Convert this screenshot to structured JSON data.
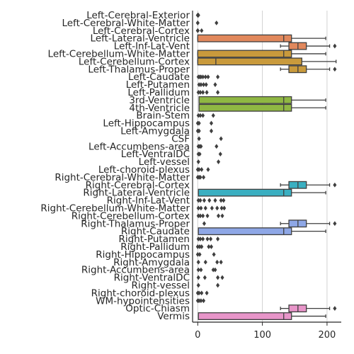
{
  "chart_data": {
    "type": "box",
    "orientation": "horizontal",
    "title": "",
    "xlabel": "",
    "ylabel": "",
    "xlim": [
      -8,
      222
    ],
    "xticks": [
      0,
      100,
      200
    ],
    "grid": "vertical",
    "legend": "none",
    "categories": [
      {
        "name": "Left-Cerebral-Exterior",
        "color": "#e0e0e0",
        "stats": null,
        "outliers": [
          0,
          0,
          0,
          1
        ]
      },
      {
        "name": "Left-Cerebral-White-Matter",
        "color": "#e0e0e0",
        "stats": null,
        "outliers": [
          0,
          0,
          29
        ]
      },
      {
        "name": "Left-Cerebral-Cortex",
        "color": "#e0e0e0",
        "stats": null,
        "outliers": [
          0,
          0,
          0,
          6
        ]
      },
      {
        "name": "Left-Lateral-Ventricle",
        "color": "#e1885c",
        "stats": {
          "min": 0,
          "q1": 0,
          "median": 133,
          "q3": 145,
          "max": 198
        },
        "outliers": []
      },
      {
        "name": "Left-Inf-Lat-Vent",
        "color": "#e1885c",
        "stats": {
          "min": 128,
          "q1": 141,
          "median": 155,
          "q3": 168,
          "max": 204
        },
        "outliers": [
          212
        ]
      },
      {
        "name": "Left-Cerebellum-White-Matter",
        "color": "#c99a3c",
        "stats": {
          "min": 0,
          "q1": 0,
          "median": 133,
          "q3": 145,
          "max": 198
        },
        "outliers": []
      },
      {
        "name": "Left-Cerebellum-Cortex",
        "color": "#c99a3c",
        "stats": {
          "min": 0,
          "q1": 0,
          "median": 28,
          "q3": 161,
          "max": 214
        },
        "outliers": []
      },
      {
        "name": "Left-Thalamus-Proper",
        "color": "#c99a3c",
        "stats": {
          "min": 128,
          "q1": 141,
          "median": 155,
          "q3": 168,
          "max": 204
        },
        "outliers": [
          212
        ]
      },
      {
        "name": "Left-Caudate",
        "color": "#e0e0e0",
        "stats": null,
        "outliers": [
          1,
          3,
          5,
          8,
          12,
          16,
          31
        ]
      },
      {
        "name": "Left-Putamen",
        "color": "#e0e0e0",
        "stats": null,
        "outliers": [
          2,
          5,
          9,
          13,
          27
        ]
      },
      {
        "name": "Left-Pallidum",
        "color": "#e0e0e0",
        "stats": null,
        "outliers": [
          1,
          4,
          8,
          14,
          31
        ]
      },
      {
        "name": "3rd-Ventricle",
        "color": "#8fb743",
        "stats": {
          "min": 2,
          "q1": 2,
          "median": 133,
          "q3": 145,
          "max": 198
        },
        "outliers": []
      },
      {
        "name": "4th-Ventricle",
        "color": "#8fb743",
        "stats": {
          "min": 2,
          "q1": 2,
          "median": 133,
          "q3": 145,
          "max": 198
        },
        "outliers": []
      },
      {
        "name": "Brain-Stem",
        "color": "#e0e0e0",
        "stats": null,
        "outliers": [
          1,
          4,
          8,
          24
        ]
      },
      {
        "name": "Left-Hippocampus",
        "color": "#e0e0e0",
        "stats": null,
        "outliers": [
          0,
          2,
          21
        ]
      },
      {
        "name": "Left-Amygdala",
        "color": "#e0e0e0",
        "stats": null,
        "outliers": [
          0,
          2,
          21
        ]
      },
      {
        "name": "CSF",
        "color": "#e0e0e0",
        "stats": null,
        "outliers": [
          2,
          36
        ]
      },
      {
        "name": "Left-Accumbens-area",
        "color": "#e0e0e0",
        "stats": null,
        "outliers": [
          1,
          3,
          5,
          29
        ]
      },
      {
        "name": "Left-VentralDC",
        "color": "#e0e0e0",
        "stats": null,
        "outliers": [
          1,
          3,
          35
        ]
      },
      {
        "name": "Left-vessel",
        "color": "#e0e0e0",
        "stats": null,
        "outliers": [
          1,
          32
        ]
      },
      {
        "name": "Left-choroid-plexus",
        "color": "#e0e0e0",
        "stats": null,
        "outliers": [
          0,
          2,
          6,
          16
        ]
      },
      {
        "name": "Right-Cerebral-White-Matter",
        "color": "#e0e0e0",
        "stats": null,
        "outliers": [
          0,
          2,
          4,
          9
        ]
      },
      {
        "name": "Right-Cerebral-Cortex",
        "color": "#3aafc1",
        "stats": {
          "min": 128,
          "q1": 141,
          "median": 155,
          "q3": 168,
          "max": 204
        },
        "outliers": [
          212
        ]
      },
      {
        "name": "Right-Lateral-Ventricle",
        "color": "#3aafc1",
        "stats": {
          "min": 1,
          "q1": 1,
          "median": 133,
          "q3": 145,
          "max": 198
        },
        "outliers": []
      },
      {
        "name": "Right-Inf-Lat-Vent",
        "color": "#e0e0e0",
        "stats": null,
        "outliers": [
          1,
          4,
          10,
          18,
          27,
          36,
          40
        ]
      },
      {
        "name": "Right-Cerebellum-White-Matter",
        "color": "#e0e0e0",
        "stats": null,
        "outliers": [
          1,
          5,
          12,
          22,
          30,
          37,
          41
        ]
      },
      {
        "name": "Right-Cerebellum-Cortex",
        "color": "#e0e0e0",
        "stats": null,
        "outliers": [
          1,
          4,
          8,
          15,
          32,
          38
        ]
      },
      {
        "name": "Right-Thalamus-Proper",
        "color": "#8ea7e6",
        "stats": {
          "min": 128,
          "q1": 141,
          "median": 155,
          "q3": 168,
          "max": 204
        },
        "outliers": [
          10,
          212
        ]
      },
      {
        "name": "Right-Caudate",
        "color": "#8ea7e6",
        "stats": {
          "min": 1,
          "q1": 1,
          "median": 133,
          "q3": 145,
          "max": 198
        },
        "outliers": []
      },
      {
        "name": "Right-Putamen",
        "color": "#e0e0e0",
        "stats": null,
        "outliers": [
          1,
          4,
          8,
          15,
          20,
          31
        ]
      },
      {
        "name": "Right-Pallidum",
        "color": "#e0e0e0",
        "stats": null,
        "outliers": [
          0,
          3,
          6,
          17,
          21
        ]
      },
      {
        "name": "Right-Hippocampus",
        "color": "#e0e0e0",
        "stats": null,
        "outliers": [
          0,
          3,
          25
        ]
      },
      {
        "name": "Right-Amygdala",
        "color": "#e0e0e0",
        "stats": null,
        "outliers": [
          1,
          12,
          30,
          36
        ]
      },
      {
        "name": "Right-Accumbens-area",
        "color": "#e0e0e0",
        "stats": null,
        "outliers": [
          1,
          5,
          24,
          27
        ]
      },
      {
        "name": "Right-VentralDC",
        "color": "#e0e0e0",
        "stats": null,
        "outliers": [
          1,
          11,
          31,
          38
        ]
      },
      {
        "name": "Right-vessel",
        "color": "#e0e0e0",
        "stats": null,
        "outliers": [
          1,
          31
        ]
      },
      {
        "name": "Right-choroid-plexus",
        "color": "#e0e0e0",
        "stats": null,
        "outliers": [
          0,
          2,
          6,
          14
        ]
      },
      {
        "name": "WM-hypointensities",
        "color": "#e0e0e0",
        "stats": null,
        "outliers": [
          0,
          2,
          5,
          9
        ]
      },
      {
        "name": "Optic-Chiasm",
        "color": "#e895c9",
        "stats": {
          "min": 128,
          "q1": 141,
          "median": 155,
          "q3": 168,
          "max": 204
        },
        "outliers": [
          212
        ]
      },
      {
        "name": "Vermis",
        "color": "#e895c9",
        "stats": {
          "min": 1,
          "q1": 1,
          "median": 133,
          "q3": 145,
          "max": 198
        },
        "outliers": []
      }
    ]
  }
}
